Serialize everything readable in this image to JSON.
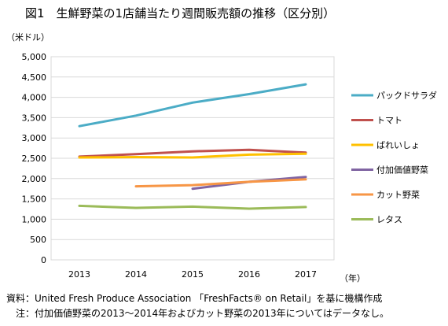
{
  "chart_data": {
    "type": "line",
    "title": "図1　生鮮野菜の1店舗当たり週間販売額の推移（区分別）",
    "ylabel": "（米ドル）",
    "xlabel": "（年）",
    "x": [
      "2013",
      "2014",
      "2015",
      "2016",
      "2017"
    ],
    "ylim": [
      0,
      5000
    ],
    "yticks": [
      "0",
      "500",
      "1,000",
      "1,500",
      "2,000",
      "2,500",
      "3,000",
      "3,500",
      "4,000",
      "4,500",
      "5,000"
    ],
    "ytick_values": [
      0,
      500,
      1000,
      1500,
      2000,
      2500,
      3000,
      3500,
      4000,
      4500,
      5000
    ],
    "grid": true,
    "legend_position": "right",
    "series": [
      {
        "name": "パックドサラダ",
        "color": "#4bacc6",
        "values": [
          3290,
          3550,
          3870,
          4080,
          4320
        ]
      },
      {
        "name": "トマト",
        "color": "#c0504d",
        "values": [
          2540,
          2600,
          2670,
          2710,
          2640
        ]
      },
      {
        "name": "ばれいしょ",
        "color": "#ffc000",
        "values": [
          2520,
          2530,
          2520,
          2590,
          2610
        ]
      },
      {
        "name": "付加価値野菜",
        "color": "#8064a2",
        "values": [
          null,
          null,
          1750,
          1920,
          2040
        ]
      },
      {
        "name": "カット野菜",
        "color": "#f79646",
        "values": [
          null,
          1810,
          1840,
          1920,
          1980
        ]
      },
      {
        "name": "レタス",
        "color": "#9bbb59",
        "values": [
          1330,
          1280,
          1310,
          1260,
          1300
        ]
      }
    ]
  },
  "notes": {
    "source": "資料：United Fresh Produce Association 「FreshFacts® on Retail」を基に機構作成",
    "caveat": "注：付加価値野菜の2013～2014年およびカット野菜の2013年についてはデータなし。"
  }
}
